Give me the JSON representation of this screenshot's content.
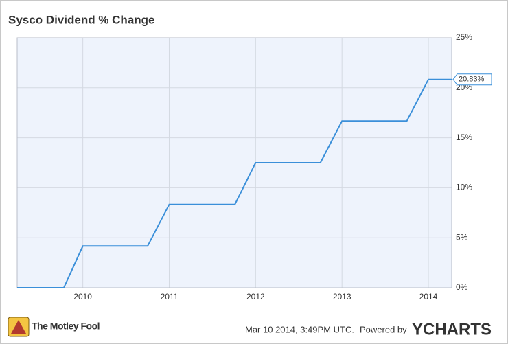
{
  "chart_data": {
    "type": "line",
    "title": "Sysco Dividend % Change",
    "x": [
      2009.24,
      2009.78,
      2010.0,
      2010.75,
      2011.0,
      2011.76,
      2012.0,
      2012.75,
      2013.0,
      2013.75,
      2014.0,
      2014.27
    ],
    "series": [
      {
        "name": "Sysco Dividend % Change",
        "color": "#3a8fd9",
        "values": [
          0,
          0,
          4.17,
          4.17,
          8.33,
          8.33,
          12.5,
          12.5,
          16.67,
          16.67,
          20.83,
          20.83
        ],
        "value_labels": [
          null,
          null,
          null,
          null,
          null,
          null,
          null,
          null,
          null,
          null,
          null,
          "20.83%"
        ]
      }
    ],
    "xlim": [
      2009.24,
      2014.27
    ],
    "xticks": [
      2010,
      2011,
      2012,
      2013,
      2014
    ],
    "ylim": [
      0,
      25
    ],
    "yticks": [
      {
        "value": 0,
        "label": "0%"
      },
      {
        "value": 5,
        "label": "5%"
      },
      {
        "value": 10,
        "label": "10%"
      },
      {
        "value": 15,
        "label": "15%"
      },
      {
        "value": 20,
        "label": "20%"
      },
      {
        "value": 25,
        "label": "25%"
      }
    ],
    "grid": true,
    "plot_background": "#eef3fc",
    "source_logo": "The Motley Fool",
    "timestamp": "Mar 10 2014, 3:49PM UTC.",
    "powered_by": "Powered by",
    "brand": "YCHARTS"
  }
}
